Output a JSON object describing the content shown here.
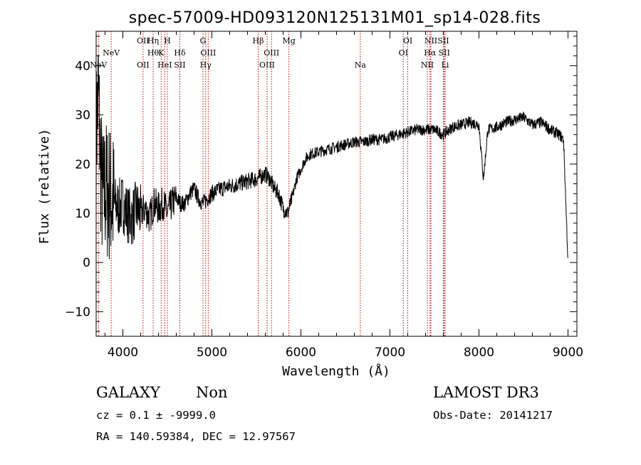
{
  "title": "spec-57009-HD093120N125131M01_sp14-028.fits",
  "info": {
    "class_label": "GALAXY",
    "subclass_label": "Non",
    "survey_label": "LAMOST DR3",
    "cz_text": "cz = 0.1 ± -9999.0",
    "obsdate_text": "Obs-Date: 20141217",
    "radec_text": "RA = 140.59384, DEC =  12.97567"
  },
  "chart_data": {
    "type": "line",
    "title": "spec-57009-HD093120N125131M01_sp14-028.fits",
    "xlabel": "Wavelength (Å)",
    "ylabel": "Flux (relative)",
    "xlim": [
      3700,
      9100
    ],
    "ylim": [
      -15,
      47
    ],
    "xticks": [
      4000,
      5000,
      6000,
      7000,
      8000,
      9000
    ],
    "yticks": [
      -10,
      0,
      10,
      20,
      30,
      40
    ],
    "line_color": "#000000",
    "marker_color": "#cc0000",
    "series": [
      {
        "x": [
          3700,
          3725,
          3750,
          3775,
          3800,
          3850,
          3900,
          3950,
          4000,
          4050,
          4100,
          4150,
          4200,
          4250,
          4300,
          4350,
          4400,
          4450,
          4500,
          4550,
          4600,
          4650,
          4700,
          4750,
          4800,
          4850,
          4900,
          4950,
          5000,
          5100,
          5200,
          5300,
          5400,
          5500,
          5600,
          5650,
          5700,
          5750,
          5800,
          5850,
          5900,
          5950,
          6000,
          6050,
          6100,
          6200,
          6300,
          6400,
          6500,
          6600,
          6700,
          6800,
          6900,
          7000,
          7100,
          7200,
          7300,
          7400,
          7500,
          7600,
          7700,
          7800,
          7900,
          8000,
          8050,
          8100,
          8200,
          8300,
          8400,
          8500,
          8600,
          8700,
          8800,
          8900,
          8950,
          9000
        ],
        "y": [
          25,
          35,
          20,
          12,
          15,
          14,
          12,
          11,
          12,
          10,
          9,
          11,
          10,
          11,
          9,
          12,
          11,
          12,
          10,
          12,
          13,
          12,
          12,
          14,
          15,
          13,
          12,
          13,
          14,
          15,
          15.5,
          16,
          16.5,
          17,
          18,
          17,
          15,
          14,
          11,
          10,
          13,
          17,
          19,
          21,
          22,
          22.5,
          23,
          23.5,
          24,
          24.5,
          24.5,
          25,
          25,
          25.5,
          26,
          26.5,
          27,
          27,
          27,
          26,
          27.5,
          28,
          28.5,
          28,
          17,
          27,
          27.5,
          28.5,
          29,
          29.5,
          28,
          28.5,
          27,
          26,
          25,
          0
        ]
      }
    ],
    "emission_lines": [
      {
        "wavelength": 3726,
        "row": 3,
        "text": "NeV"
      },
      {
        "wavelength": 3869,
        "row": 2,
        "text": "NeV"
      },
      {
        "wavelength": 4227,
        "row": 1,
        "text": "OII"
      },
      {
        "wavelength": 4227,
        "row": 3,
        "text": "OII"
      },
      {
        "wavelength": 4340,
        "row": 2,
        "text": "Hθ"
      },
      {
        "wavelength": 4340,
        "row": 1,
        "text": "Hη"
      },
      {
        "wavelength": 4471,
        "row": 3,
        "text": "HeI"
      },
      {
        "wavelength": 4500,
        "row": 1,
        "text": "H"
      },
      {
        "wavelength": 4430,
        "row": 2,
        "text": "K"
      },
      {
        "wavelength": 4640,
        "row": 2,
        "text": "Hδ"
      },
      {
        "wavelength": 4640,
        "row": 3,
        "text": "SII"
      },
      {
        "wavelength": 4900,
        "row": 1,
        "text": "G"
      },
      {
        "wavelength": 4959,
        "row": 2,
        "text": "OIII"
      },
      {
        "wavelength": 4930,
        "row": 3,
        "text": "Hγ"
      },
      {
        "wavelength": 5520,
        "row": 1,
        "text": "Hβ"
      },
      {
        "wavelength": 5670,
        "row": 2,
        "text": "OIII"
      },
      {
        "wavelength": 5620,
        "row": 3,
        "text": "OIII"
      },
      {
        "wavelength": 5865,
        "row": 1,
        "text": "Mg"
      },
      {
        "wavelength": 6667,
        "row": 3,
        "text": "Na"
      },
      {
        "wavelength": 7200,
        "row": 1,
        "text": "OI"
      },
      {
        "wavelength": 7150,
        "row": 2,
        "text": "OI"
      },
      {
        "wavelength": 7460,
        "row": 1,
        "text": "NII"
      },
      {
        "wavelength": 7450,
        "row": 2,
        "text": "Hα"
      },
      {
        "wavelength": 7420,
        "row": 3,
        "text": "NII"
      },
      {
        "wavelength": 7600,
        "row": 1,
        "text": "SII"
      },
      {
        "wavelength": 7610,
        "row": 2,
        "text": "SII"
      },
      {
        "wavelength": 7620,
        "row": 3,
        "text": "Li"
      }
    ]
  }
}
